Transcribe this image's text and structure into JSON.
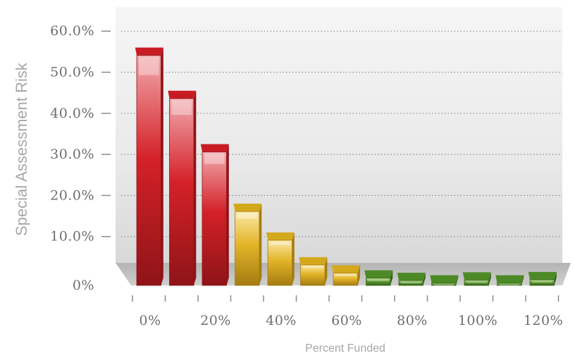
{
  "chart_data": {
    "type": "bar",
    "title": "",
    "xlabel": "Percent Funded",
    "ylabel": "Special Assessment Risk",
    "ylim": [
      0,
      60
    ],
    "y_ticks": [
      "0%",
      "10.0%",
      "20.0%",
      "30.0%",
      "40.0%",
      "50.0%",
      "60.0%"
    ],
    "y_tick_values": [
      0,
      10,
      20,
      30,
      40,
      50,
      60
    ],
    "x_ticks": [
      "0%",
      "20%",
      "40%",
      "60%",
      "80%",
      "100%",
      "120%"
    ],
    "x_tick_values": [
      0,
      20,
      40,
      60,
      80,
      100,
      120
    ],
    "bar_width_units": 10,
    "grid": true,
    "legend": "none",
    "bars": [
      {
        "x_start": 0,
        "value": 56,
        "color": "red"
      },
      {
        "x_start": 10,
        "value": 45.5,
        "color": "red"
      },
      {
        "x_start": 20,
        "value": 32.5,
        "color": "red"
      },
      {
        "x_start": 30,
        "value": 18,
        "color": "yellow"
      },
      {
        "x_start": 40,
        "value": 11,
        "color": "yellow"
      },
      {
        "x_start": 50,
        "value": 5,
        "color": "yellow"
      },
      {
        "x_start": 60,
        "value": 3,
        "color": "yellow"
      },
      {
        "x_start": 70,
        "value": 1.8,
        "color": "green"
      },
      {
        "x_start": 80,
        "value": 1.2,
        "color": "green"
      },
      {
        "x_start": 90,
        "value": 0.6,
        "color": "green"
      },
      {
        "x_start": 100,
        "value": 1.3,
        "color": "green"
      },
      {
        "x_start": 110,
        "value": 0.6,
        "color": "green"
      },
      {
        "x_start": 120,
        "value": 1.4,
        "color": "green"
      }
    ],
    "colors": {
      "red": {
        "light": "#f0a8ac",
        "mid": "#d42128",
        "dark": "#8e1418",
        "top": "#c81c22"
      },
      "yellow": {
        "light": "#fbe8a6",
        "mid": "#e2b428",
        "dark": "#a47c12",
        "top": "#d4a81c"
      },
      "green": {
        "light": "#b9db92",
        "mid": "#5f9b32",
        "dark": "#356218",
        "top": "#4c8a26"
      }
    }
  }
}
